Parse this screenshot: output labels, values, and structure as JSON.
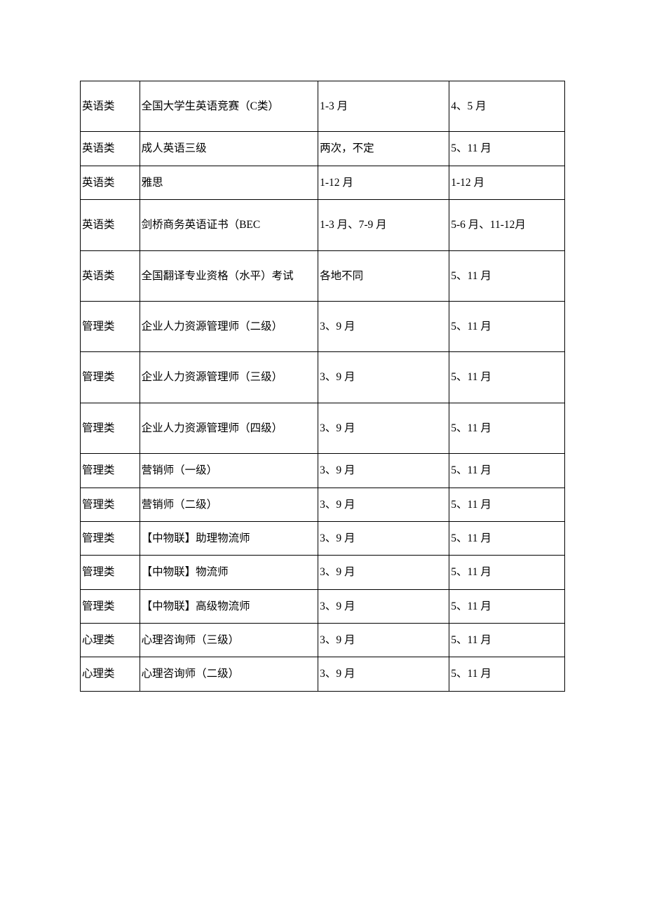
{
  "table": {
    "columns": [
      {
        "key": "category",
        "width_pct": 11.3
      },
      {
        "key": "name",
        "width_pct": 34
      },
      {
        "key": "registration",
        "width_pct": 25
      },
      {
        "key": "exam_date",
        "width_pct": 22
      }
    ],
    "row_height_tall": true,
    "border_color": "#000000",
    "background_color": "#ffffff",
    "text_color": "#000000",
    "font_size": 15.5,
    "font_family": "SimSun",
    "line_height": 2.8,
    "rows": [
      {
        "category": "英语类",
        "name": "全国大学生英语竞赛（C类）",
        "registration": "1-3 月",
        "exam_date": "4、5 月",
        "tall": true
      },
      {
        "category": "英语类",
        "name": "成人英语三级",
        "registration": "两次，不定",
        "exam_date": "5、11 月",
        "tall": false
      },
      {
        "category": "英语类",
        "name": "雅思",
        "registration": "1-12 月",
        "exam_date": "1-12 月",
        "tall": false
      },
      {
        "category": "英语类",
        "name": "剑桥商务英语证书（BEC",
        "registration": "1-3 月、7-9 月",
        "exam_date": "5-6 月、11-12月",
        "tall": true
      },
      {
        "category": "英语类",
        "name": "全国翻译专业资格（水平）考试",
        "registration": "各地不同",
        "exam_date": "5、11 月",
        "tall": true
      },
      {
        "category": "管理类",
        "name": "企业人力资源管理师（二级）",
        "registration": "3、9 月",
        "exam_date": "5、11 月",
        "tall": true
      },
      {
        "category": "管理类",
        "name": "企业人力资源管理师（三级）",
        "registration": "3、9 月",
        "exam_date": "5、11 月",
        "tall": true
      },
      {
        "category": "管理类",
        "name": "企业人力资源管理师（四级）",
        "registration": "3、9 月",
        "exam_date": "5、11 月",
        "tall": true
      },
      {
        "category": "管理类",
        "name": "营销师（一级）",
        "registration": "3、9 月",
        "exam_date": "5、11 月",
        "tall": false
      },
      {
        "category": "管理类",
        "name": "营销师（二级）",
        "registration": "3、9 月",
        "exam_date": "5、11 月",
        "tall": false
      },
      {
        "category": "管理类",
        "name": "【中物联】助理物流师",
        "registration": "3、9 月",
        "exam_date": "5、11 月",
        "tall": false
      },
      {
        "category": "管理类",
        "name": "【中物联】物流师",
        "registration": "3、9 月",
        "exam_date": "5、11 月",
        "tall": false
      },
      {
        "category": "管理类",
        "name": "【中物联】高级物流师",
        "registration": "3、9 月",
        "exam_date": "5、11 月",
        "tall": false
      },
      {
        "category": "心理类",
        "name": "心理咨询师（三级）",
        "registration": "3、9 月",
        "exam_date": "5、11 月",
        "tall": false
      },
      {
        "category": "心理类",
        "name": "心理咨询师（二级）",
        "registration": "3、9 月",
        "exam_date": "5、11 月",
        "tall": false
      }
    ]
  }
}
